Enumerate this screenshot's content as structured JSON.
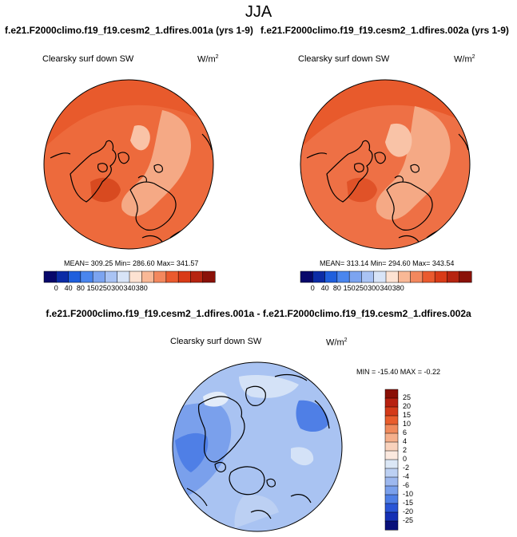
{
  "title": "JJA",
  "panels": [
    {
      "case_title": "f.e21.F2000climo.f19_f19.cesm2_1.dfires.001a (yrs 1-9)",
      "variable": "Clearsky surf down SW",
      "units_base": "W/m",
      "units_sup": "2",
      "stats": "MEAN= 309.25  Min= 286.60  Max= 341.57"
    },
    {
      "case_title": "f.e21.F2000climo.f19_f19.cesm2_1.dfires.002a (yrs 1-9)",
      "variable": "Clearsky surf down SW",
      "units_base": "W/m",
      "units_sup": "2",
      "stats": "MEAN= 313.14  Min= 294.60  Max= 343.54"
    }
  ],
  "diff_panel": {
    "title": "f.e21.F2000climo.f19_f19.cesm2_1.dfires.001a - f.e21.F2000climo.f19_f19.cesm2_1.dfires.002a",
    "variable": "Clearsky surf down SW",
    "units_base": "W/m",
    "units_sup": "2",
    "stats": "MIN = -15.40 MAX =  -0.22"
  },
  "chart_data": [
    {
      "type": "heatmap",
      "projection": "north-polar-stereographic",
      "title": "f.e21.F2000climo.f19_f19.cesm2_1.dfires.001a (yrs 1-9)",
      "variable": "Clearsky surf down SW",
      "units": "W/m2",
      "mean": 309.25,
      "min": 286.6,
      "max": 341.57,
      "colorbar_levels": [
        0,
        40,
        80,
        150,
        250,
        300,
        340,
        380
      ],
      "colorbar_colors": [
        "#08086b",
        "#0c2ca6",
        "#1f5fdd",
        "#4a86ee",
        "#7ca4f0",
        "#a9c3f4",
        "#d8e4f7",
        "#fde2d2",
        "#f9b896",
        "#f3885e",
        "#ea5a2e",
        "#d93b17",
        "#b62410",
        "#8a1108"
      ]
    },
    {
      "type": "heatmap",
      "projection": "north-polar-stereographic",
      "title": "f.e21.F2000climo.f19_f19.cesm2_1.dfires.002a (yrs 1-9)",
      "variable": "Clearsky surf down SW",
      "units": "W/m2",
      "mean": 313.14,
      "min": 294.6,
      "max": 343.54,
      "colorbar_levels": [
        0,
        40,
        80,
        150,
        250,
        300,
        340,
        380
      ],
      "colorbar_colors": [
        "#08086b",
        "#0c2ca6",
        "#1f5fdd",
        "#4a86ee",
        "#7ca4f0",
        "#a9c3f4",
        "#d8e4f7",
        "#fde2d2",
        "#f9b896",
        "#f3885e",
        "#ea5a2e",
        "#d93b17",
        "#b62410",
        "#8a1108"
      ]
    },
    {
      "type": "heatmap",
      "projection": "north-polar-stereographic",
      "title": "f.e21.F2000climo.f19_f19.cesm2_1.dfires.001a - f.e21.F2000climo.f19_f19.cesm2_1.dfires.002a",
      "variable": "Clearsky surf down SW",
      "units": "W/m2",
      "min": -15.4,
      "max": -0.22,
      "colorbar_levels": [
        25,
        20,
        15,
        10,
        6,
        4,
        2,
        0,
        -2,
        -4,
        -6,
        -10,
        -15,
        -20,
        -25
      ],
      "colorbar_colors": [
        "#8a0f06",
        "#b7200f",
        "#d43a18",
        "#e95d2c",
        "#f08a5c",
        "#f5b08c",
        "#f9d2bc",
        "#fbe9df",
        "#dbe7f6",
        "#bcd0f3",
        "#9db8ef",
        "#7aa0ec",
        "#4f7fe6",
        "#2a55d6",
        "#1530b5",
        "#09107a"
      ]
    }
  ]
}
